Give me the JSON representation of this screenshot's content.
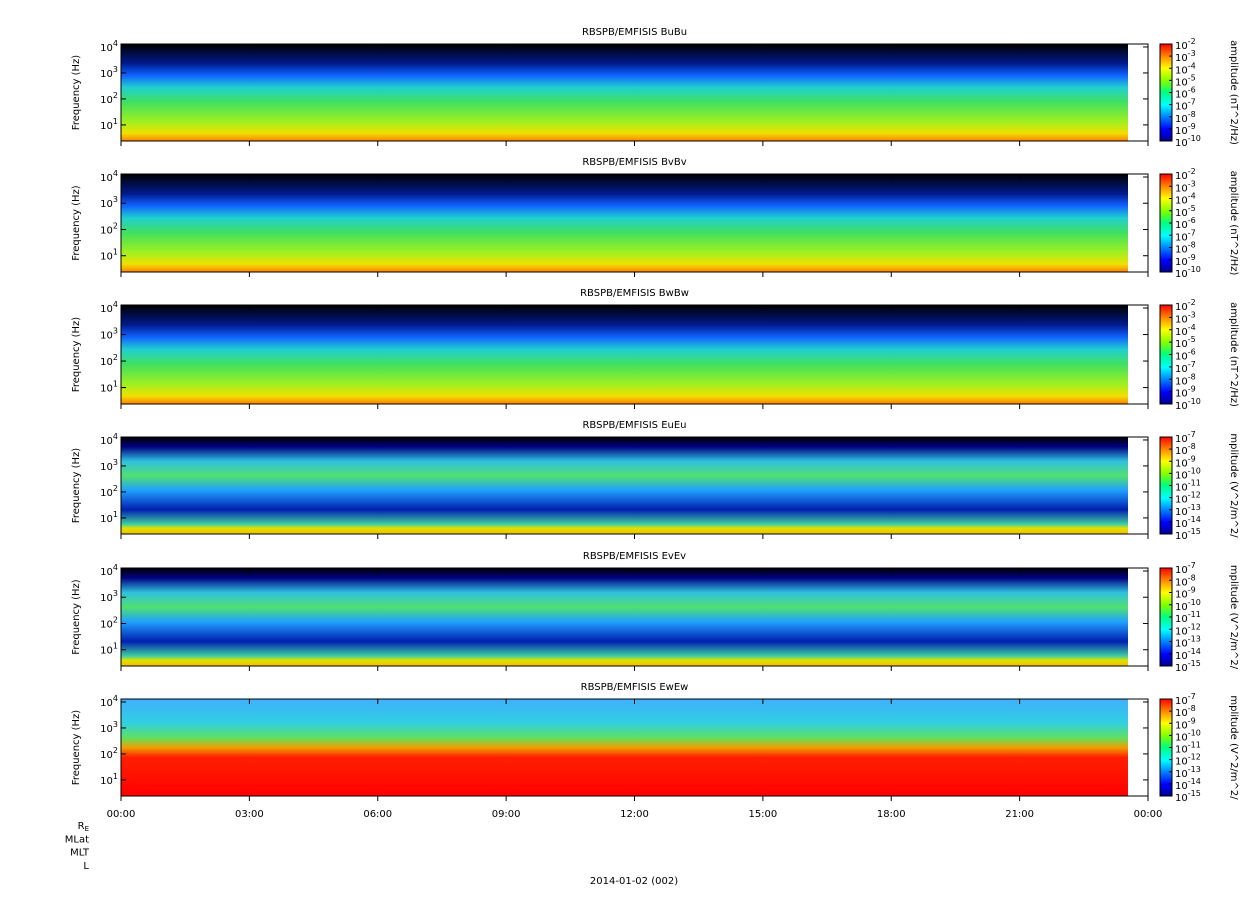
{
  "chart_data": [
    {
      "type": "spectrogram",
      "title": "RBSPB/EMFISIS  BuBu",
      "y_label": "Frequency (Hz)",
      "log_y": true,
      "ylim": [
        2.4,
        13000
      ],
      "yticks": [
        {
          "value": 10,
          "label": "10",
          "exponent": "1"
        },
        {
          "value": 100,
          "label": "10",
          "exponent": "2"
        },
        {
          "value": 1000,
          "label": "10",
          "exponent": "3"
        },
        {
          "value": 10000,
          "label": "10",
          "exponent": "4"
        }
      ],
      "xlim": [
        0,
        24
      ],
      "xticks": [
        0,
        3,
        6,
        9,
        12,
        15,
        18,
        21,
        24
      ],
      "colorbar": {
        "label": "amplitude (nT^2/Hz)",
        "zlim": [
          1e-10,
          0.01
        ],
        "zticks": [
          {
            "value": 0.01,
            "label": "10",
            "exponent": "-2"
          },
          {
            "value": 0.001,
            "label": "10",
            "exponent": "-3"
          },
          {
            "value": 0.0001,
            "label": "10",
            "exponent": "-4"
          },
          {
            "value": 1e-05,
            "label": "10",
            "exponent": "-5"
          },
          {
            "value": 1e-06,
            "label": "10",
            "exponent": "-6"
          },
          {
            "value": 1e-07,
            "label": "10",
            "exponent": "-7"
          },
          {
            "value": 1e-08,
            "label": "10",
            "exponent": "-8"
          },
          {
            "value": 1e-09,
            "label": "10",
            "exponent": "-9"
          },
          {
            "value": 1e-10,
            "label": "10",
            "exponent": "-10"
          }
        ]
      }
    },
    {
      "type": "spectrogram",
      "title": "RBSPB/EMFISIS  BvBv",
      "y_label": "Frequency (Hz)",
      "log_y": true,
      "ylim": [
        2.4,
        13000
      ],
      "yticks": [
        {
          "value": 10,
          "label": "10",
          "exponent": "1"
        },
        {
          "value": 100,
          "label": "10",
          "exponent": "2"
        },
        {
          "value": 1000,
          "label": "10",
          "exponent": "3"
        },
        {
          "value": 10000,
          "label": "10",
          "exponent": "4"
        }
      ],
      "xlim": [
        0,
        24
      ],
      "xticks": [
        0,
        3,
        6,
        9,
        12,
        15,
        18,
        21,
        24
      ],
      "colorbar": {
        "label": "amplitude (nT^2/Hz)",
        "zlim": [
          1e-10,
          0.01
        ],
        "zticks": [
          {
            "value": 0.01,
            "label": "10",
            "exponent": "-2"
          },
          {
            "value": 0.001,
            "label": "10",
            "exponent": "-3"
          },
          {
            "value": 0.0001,
            "label": "10",
            "exponent": "-4"
          },
          {
            "value": 1e-05,
            "label": "10",
            "exponent": "-5"
          },
          {
            "value": 1e-06,
            "label": "10",
            "exponent": "-6"
          },
          {
            "value": 1e-07,
            "label": "10",
            "exponent": "-7"
          },
          {
            "value": 1e-08,
            "label": "10",
            "exponent": "-8"
          },
          {
            "value": 1e-09,
            "label": "10",
            "exponent": "-9"
          },
          {
            "value": 1e-10,
            "label": "10",
            "exponent": "-10"
          }
        ]
      }
    },
    {
      "type": "spectrogram",
      "title": "RBSPB/EMFISIS  BwBw",
      "y_label": "Frequency (Hz)",
      "log_y": true,
      "ylim": [
        2.4,
        13000
      ],
      "yticks": [
        {
          "value": 10,
          "label": "10",
          "exponent": "1"
        },
        {
          "value": 100,
          "label": "10",
          "exponent": "2"
        },
        {
          "value": 1000,
          "label": "10",
          "exponent": "3"
        },
        {
          "value": 10000,
          "label": "10",
          "exponent": "4"
        }
      ],
      "xlim": [
        0,
        24
      ],
      "xticks": [
        0,
        3,
        6,
        9,
        12,
        15,
        18,
        21,
        24
      ],
      "colorbar": {
        "label": "amplitude (nT^2/Hz)",
        "zlim": [
          1e-10,
          0.01
        ],
        "zticks": [
          {
            "value": 0.01,
            "label": "10",
            "exponent": "-2"
          },
          {
            "value": 0.001,
            "label": "10",
            "exponent": "-3"
          },
          {
            "value": 0.0001,
            "label": "10",
            "exponent": "-4"
          },
          {
            "value": 1e-05,
            "label": "10",
            "exponent": "-5"
          },
          {
            "value": 1e-06,
            "label": "10",
            "exponent": "-6"
          },
          {
            "value": 1e-07,
            "label": "10",
            "exponent": "-7"
          },
          {
            "value": 1e-08,
            "label": "10",
            "exponent": "-8"
          },
          {
            "value": 1e-09,
            "label": "10",
            "exponent": "-9"
          },
          {
            "value": 1e-10,
            "label": "10",
            "exponent": "-10"
          }
        ]
      }
    },
    {
      "type": "spectrogram",
      "title": "RBSPB/EMFISIS  EuEu",
      "y_label": "Frequency (Hz)",
      "log_y": true,
      "ylim": [
        2.4,
        13000
      ],
      "yticks": [
        {
          "value": 10,
          "label": "10",
          "exponent": "1"
        },
        {
          "value": 100,
          "label": "10",
          "exponent": "2"
        },
        {
          "value": 1000,
          "label": "10",
          "exponent": "3"
        },
        {
          "value": 10000,
          "label": "10",
          "exponent": "4"
        }
      ],
      "xlim": [
        0,
        24
      ],
      "xticks": [
        0,
        3,
        6,
        9,
        12,
        15,
        18,
        21,
        24
      ],
      "colorbar": {
        "label": "mplitude (V^2/m^2/",
        "zlim": [
          1e-15,
          1e-07
        ],
        "zticks": [
          {
            "value": 1e-07,
            "label": "10",
            "exponent": "-7"
          },
          {
            "value": 1e-08,
            "label": "10",
            "exponent": "-8"
          },
          {
            "value": 1e-09,
            "label": "10",
            "exponent": "-9"
          },
          {
            "value": 1e-10,
            "label": "10",
            "exponent": "-10"
          },
          {
            "value": 1e-11,
            "label": "10",
            "exponent": "-11"
          },
          {
            "value": 1e-12,
            "label": "10",
            "exponent": "-12"
          },
          {
            "value": 1e-13,
            "label": "10",
            "exponent": "-13"
          },
          {
            "value": 1e-14,
            "label": "10",
            "exponent": "-14"
          },
          {
            "value": 1e-15,
            "label": "10",
            "exponent": "-15"
          }
        ]
      }
    },
    {
      "type": "spectrogram",
      "title": "RBSPB/EMFISIS  EvEv",
      "y_label": "Frequency (Hz)",
      "log_y": true,
      "ylim": [
        2.4,
        13000
      ],
      "yticks": [
        {
          "value": 10,
          "label": "10",
          "exponent": "1"
        },
        {
          "value": 100,
          "label": "10",
          "exponent": "2"
        },
        {
          "value": 1000,
          "label": "10",
          "exponent": "3"
        },
        {
          "value": 10000,
          "label": "10",
          "exponent": "4"
        }
      ],
      "xlim": [
        0,
        24
      ],
      "xticks": [
        0,
        3,
        6,
        9,
        12,
        15,
        18,
        21,
        24
      ],
      "colorbar": {
        "label": "mplitude (V^2/m^2/",
        "zlim": [
          1e-15,
          1e-07
        ],
        "zticks": [
          {
            "value": 1e-07,
            "label": "10",
            "exponent": "-7"
          },
          {
            "value": 1e-08,
            "label": "10",
            "exponent": "-8"
          },
          {
            "value": 1e-09,
            "label": "10",
            "exponent": "-9"
          },
          {
            "value": 1e-10,
            "label": "10",
            "exponent": "-10"
          },
          {
            "value": 1e-11,
            "label": "10",
            "exponent": "-11"
          },
          {
            "value": 1e-12,
            "label": "10",
            "exponent": "-12"
          },
          {
            "value": 1e-13,
            "label": "10",
            "exponent": "-13"
          },
          {
            "value": 1e-14,
            "label": "10",
            "exponent": "-14"
          },
          {
            "value": 1e-15,
            "label": "10",
            "exponent": "-15"
          }
        ]
      }
    },
    {
      "type": "spectrogram",
      "title": "RBSPB/EMFISIS  EwEw",
      "y_label": "Frequency (Hz)",
      "log_y": true,
      "ylim": [
        2.4,
        13000
      ],
      "yticks": [
        {
          "value": 10,
          "label": "10",
          "exponent": "1"
        },
        {
          "value": 100,
          "label": "10",
          "exponent": "2"
        },
        {
          "value": 1000,
          "label": "10",
          "exponent": "3"
        },
        {
          "value": 10000,
          "label": "10",
          "exponent": "4"
        }
      ],
      "xlim": [
        0,
        24
      ],
      "xticks": [
        {
          "value": 0,
          "label": "00:00"
        },
        {
          "value": 3,
          "label": "03:00"
        },
        {
          "value": 6,
          "label": "06:00"
        },
        {
          "value": 9,
          "label": "09:00"
        },
        {
          "value": 12,
          "label": "12:00"
        },
        {
          "value": 15,
          "label": "15:00"
        },
        {
          "value": 18,
          "label": "18:00"
        },
        {
          "value": 21,
          "label": "21:00"
        },
        {
          "value": 24,
          "label": "00:00"
        }
      ],
      "colorbar": {
        "label": "mplitude (V^2/m^2/",
        "zlim": [
          1e-15,
          1e-07
        ],
        "zticks": [
          {
            "value": 1e-07,
            "label": "10",
            "exponent": "-7"
          },
          {
            "value": 1e-08,
            "label": "10",
            "exponent": "-8"
          },
          {
            "value": 1e-09,
            "label": "10",
            "exponent": "-9"
          },
          {
            "value": 1e-10,
            "label": "10",
            "exponent": "-10"
          },
          {
            "value": 1e-11,
            "label": "10",
            "exponent": "-11"
          },
          {
            "value": 1e-12,
            "label": "10",
            "exponent": "-12"
          },
          {
            "value": 1e-13,
            "label": "10",
            "exponent": "-13"
          },
          {
            "value": 1e-14,
            "label": "10",
            "exponent": "-14"
          },
          {
            "value": 1e-15,
            "label": "10",
            "exponent": "-15"
          }
        ]
      }
    }
  ],
  "ephemeris_labels": [
    {
      "text": "R",
      "subscript": "E"
    },
    {
      "text": "MLat"
    },
    {
      "text": "MLT"
    },
    {
      "text": "L"
    }
  ],
  "date_label": "2014-01-02 (002)"
}
